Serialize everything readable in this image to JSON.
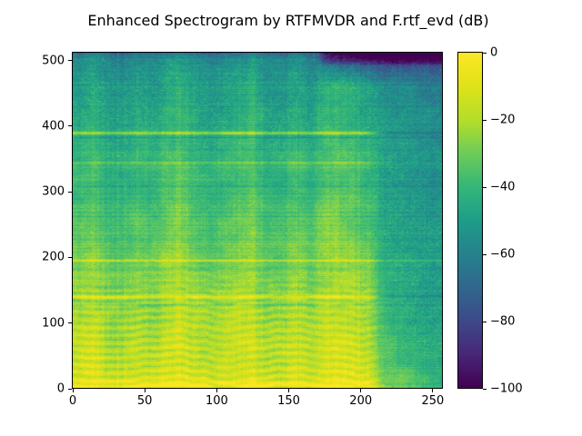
{
  "title": "Enhanced Spectrogram by RTFMVDR and F.rtf_evd (dB)",
  "figure": {
    "background": "#ffffff",
    "frame_color": "#000000"
  },
  "chart_data": {
    "type": "heatmap",
    "subtype": "spectrogram",
    "title": "Enhanced Spectrogram by RTFMVDR and F.rtf_evd (dB)",
    "colormap": "viridis",
    "colormap_stops": [
      "#440154",
      "#482878",
      "#3e4a89",
      "#31688e",
      "#26828e",
      "#1f9e89",
      "#35b779",
      "#6dcd59",
      "#b5de2b",
      "#dfe318",
      "#fde725"
    ],
    "x_range": [
      0,
      257
    ],
    "y_range": [
      0,
      512
    ],
    "value_range_db": [
      -100,
      0
    ],
    "x_ticks": [
      0,
      50,
      100,
      150,
      200,
      250
    ],
    "x_tick_labels": [
      "0",
      "50",
      "100",
      "150",
      "200",
      "250"
    ],
    "y_ticks": [
      0,
      100,
      200,
      300,
      400,
      500
    ],
    "y_tick_labels": [
      "0",
      "100",
      "200",
      "300",
      "400",
      "500"
    ],
    "colorbar_ticks": [
      0,
      -20,
      -40,
      -60,
      -80,
      -100
    ],
    "colorbar_tick_labels": [
      "0",
      "−20",
      "−40",
      "−60",
      "−80",
      "−100"
    ],
    "legend": "none",
    "grid_lines": "off",
    "grid": {
      "row_order": "bottom-up",
      "freq_rows": 16,
      "time_cols": 26,
      "freq_band_height": 32,
      "time_col_width": 10,
      "values_db": [
        [
          -12,
          -10,
          -16,
          -15,
          -12,
          -16,
          -10,
          -9,
          -12,
          -15,
          -13,
          -10,
          -9,
          -14,
          -15,
          -11,
          -14,
          -9,
          -9,
          -10,
          -13,
          -25,
          -30,
          -36,
          -40,
          -42
        ],
        [
          -16,
          -13,
          -20,
          -19,
          -15,
          -20,
          -13,
          -12,
          -16,
          -19,
          -17,
          -13,
          -12,
          -18,
          -19,
          -14,
          -18,
          -12,
          -12,
          -13,
          -17,
          -32,
          -38,
          -42,
          -44,
          -45
        ],
        [
          -18,
          -15,
          -23,
          -22,
          -17,
          -22,
          -15,
          -14,
          -18,
          -22,
          -19,
          -15,
          -14,
          -21,
          -22,
          -16,
          -21,
          -14,
          -14,
          -15,
          -19,
          -36,
          -40,
          -44,
          -46,
          -46
        ],
        [
          -22,
          -18,
          -26,
          -25,
          -20,
          -25,
          -18,
          -17,
          -21,
          -25,
          -22,
          -18,
          -17,
          -24,
          -25,
          -19,
          -24,
          -17,
          -17,
          -18,
          -22,
          -38,
          -42,
          -45,
          -47,
          -47
        ],
        [
          -25,
          -21,
          -29,
          -28,
          -23,
          -28,
          -21,
          -20,
          -24,
          -28,
          -25,
          -21,
          -20,
          -27,
          -28,
          -22,
          -27,
          -20,
          -20,
          -21,
          -25,
          -40,
          -44,
          -46,
          -48,
          -48
        ],
        [
          -28,
          -24,
          -32,
          -31,
          -26,
          -31,
          -24,
          -23,
          -27,
          -31,
          -28,
          -24,
          -23,
          -30,
          -31,
          -25,
          -30,
          -23,
          -23,
          -24,
          -28,
          -42,
          -45,
          -47,
          -48,
          -49
        ],
        [
          -31,
          -27,
          -35,
          -34,
          -29,
          -34,
          -27,
          -25,
          -30,
          -34,
          -31,
          -27,
          -25,
          -33,
          -34,
          -28,
          -33,
          -25,
          -25,
          -27,
          -31,
          -43,
          -46,
          -48,
          -49,
          -50
        ],
        [
          -34,
          -30,
          -38,
          -37,
          -32,
          -37,
          -30,
          -28,
          -33,
          -37,
          -34,
          -30,
          -28,
          -36,
          -37,
          -31,
          -36,
          -28,
          -28,
          -30,
          -34,
          -44,
          -47,
          -49,
          -50,
          -51
        ],
        [
          -36,
          -32,
          -40,
          -39,
          -34,
          -39,
          -32,
          -30,
          -35,
          -39,
          -36,
          -32,
          -30,
          -38,
          -39,
          -33,
          -38,
          -30,
          -30,
          -32,
          -36,
          -45,
          -48,
          -50,
          -51,
          -52
        ],
        [
          -40,
          -36,
          -44,
          -43,
          -38,
          -43,
          -36,
          -34,
          -39,
          -43,
          -40,
          -36,
          -34,
          -42,
          -43,
          -37,
          -42,
          -34,
          -34,
          -36,
          -40,
          -47,
          -50,
          -52,
          -53,
          -54
        ],
        [
          -39,
          -35,
          -43,
          -42,
          -37,
          -42,
          -35,
          -33,
          -38,
          -42,
          -39,
          -35,
          -33,
          -41,
          -42,
          -36,
          -41,
          -33,
          -33,
          -35,
          -39,
          -47,
          -50,
          -52,
          -53,
          -54
        ],
        [
          -43,
          -39,
          -47,
          -46,
          -41,
          -46,
          -39,
          -37,
          -42,
          -46,
          -43,
          -39,
          -37,
          -45,
          -46,
          -40,
          -45,
          -37,
          -37,
          -39,
          -43,
          -49,
          -52,
          -54,
          -55,
          -56
        ],
        [
          -45,
          -41,
          -49,
          -48,
          -43,
          -48,
          -41,
          -39,
          -44,
          -48,
          -45,
          -41,
          -39,
          -47,
          -48,
          -42,
          -47,
          -39,
          -39,
          -41,
          -45,
          -51,
          -53,
          -55,
          -56,
          -57
        ],
        [
          -48,
          -43,
          -52,
          -51,
          -45,
          -51,
          -43,
          -41,
          -46,
          -51,
          -48,
          -43,
          -41,
          -50,
          -51,
          -44,
          -50,
          -41,
          -41,
          -43,
          -48,
          -53,
          -55,
          -57,
          -58,
          -58
        ],
        [
          -50,
          -45,
          -54,
          -53,
          -47,
          -53,
          -45,
          -43,
          -48,
          -53,
          -50,
          -45,
          -43,
          -52,
          -53,
          -46,
          -52,
          -43,
          -43,
          -45,
          -50,
          -56,
          -58,
          -60,
          -62,
          -63
        ],
        [
          -56,
          -52,
          -58,
          -58,
          -54,
          -58,
          -52,
          -50,
          -54,
          -58,
          -56,
          -52,
          -50,
          -57,
          -58,
          -53,
          -57,
          -62,
          -68,
          -72,
          -74,
          -78,
          -80,
          -80,
          -80,
          -80
        ]
      ]
    },
    "h_lines": [
      {
        "f": 390,
        "w": 2.2,
        "boost": 22,
        "sil": -9
      },
      {
        "f": 383,
        "w": 1.2,
        "boost": -7,
        "sil": -5
      },
      {
        "f": 345,
        "w": 1.6,
        "boost": 8,
        "sil": 0
      },
      {
        "f": 309,
        "w": 1.2,
        "boost": -8,
        "sil": -8
      },
      {
        "f": 262,
        "w": 1.0,
        "boost": -5,
        "sil": -4
      },
      {
        "f": 195,
        "w": 2.0,
        "boost": 12,
        "sil": 7
      },
      {
        "f": 182,
        "w": 1.0,
        "boost": -7,
        "sil": -5
      },
      {
        "f": 140,
        "w": 2.6,
        "boost": 14,
        "sil": -8
      },
      {
        "f": 127,
        "w": 1.4,
        "boost": -7,
        "sil": -5
      },
      {
        "f": 6,
        "w": 5.0,
        "boost": 12,
        "sil": 0,
        "tmax": 238
      }
    ],
    "harmonics": {
      "f_max": 215,
      "period": 11.5,
      "amp": 7.5
    },
    "top_dark": {
      "f_min": 492,
      "t_min": 168,
      "delta": -24
    },
    "top_edge": {
      "f_min": 503,
      "delta": -13
    },
    "silence_fade": {
      "t_start": 204,
      "t_end": 218
    }
  }
}
